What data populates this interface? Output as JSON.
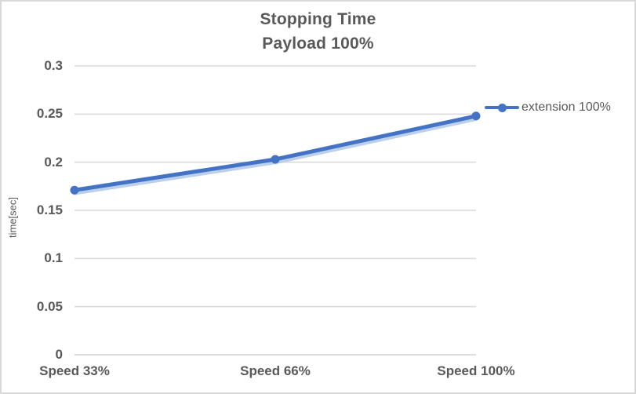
{
  "chart_data": {
    "type": "line",
    "title": [
      "Stopping Time",
      "Payload 100%"
    ],
    "categories": [
      "Speed 33%",
      "Speed 66%",
      "Speed 100%"
    ],
    "series": [
      {
        "name": "extension 100%",
        "values": [
          0.171,
          0.203,
          0.248
        ]
      }
    ],
    "xlabel": "",
    "ylabel": "time[sec]",
    "ylim": [
      0,
      0.3
    ],
    "yticks": [
      0,
      0.05,
      0.1,
      0.15,
      0.2,
      0.25,
      0.3
    ],
    "ytick_labels": [
      "0",
      "0.05",
      "0.1",
      "0.15",
      "0.2",
      "0.25",
      "0.3"
    ],
    "grid": true,
    "legend_position": "right",
    "colors": {
      "series": "#4472C4",
      "series_glow": "#AFC8E9",
      "gridline": "#D9D9D9",
      "axis_line": "#D2D2D2",
      "text": "#595959",
      "border": "#D9D9D9",
      "background": "#FFFFFF"
    }
  }
}
